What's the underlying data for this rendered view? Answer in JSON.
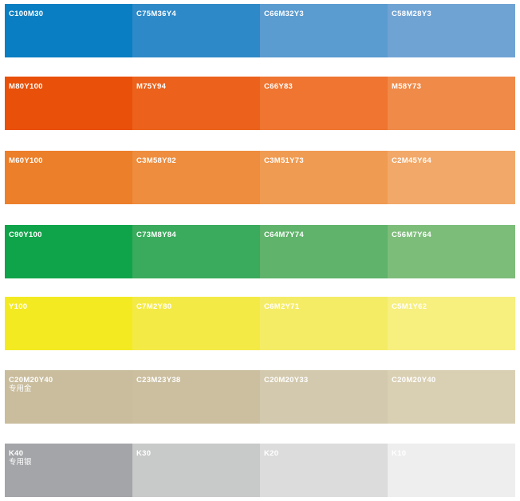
{
  "rows": [
    {
      "swatches": [
        {
          "label": "C100M30",
          "color": "#0a7ec2"
        },
        {
          "label": "C75M36Y4",
          "color": "#2e89c8"
        },
        {
          "label": "C66M32Y3",
          "color": "#5a9bd0"
        },
        {
          "label": "C58M28Y3",
          "color": "#6fa3d4"
        }
      ]
    },
    {
      "swatches": [
        {
          "label": "M80Y100",
          "color": "#e95009"
        },
        {
          "label": "M75Y94",
          "color": "#ec621c"
        },
        {
          "label": "C66Y83",
          "color": "#ef7530"
        },
        {
          "label": "M58Y73",
          "color": "#f08a48"
        }
      ]
    },
    {
      "swatches": [
        {
          "label": "M60Y100",
          "color": "#ec7f2a"
        },
        {
          "label": "C3M58Y82",
          "color": "#ee8d3e"
        },
        {
          "label": "C3M51Y73",
          "color": "#f09b52"
        },
        {
          "label": "C2M45Y64",
          "color": "#f2a868"
        }
      ]
    },
    {
      "swatches": [
        {
          "label": "C90Y100",
          "color": "#10a44a"
        },
        {
          "label": "C73M8Y84",
          "color": "#3aaa5c"
        },
        {
          "label": "C64M7Y74",
          "color": "#5fb36a"
        },
        {
          "label": "C56M7Y64",
          "color": "#7dbd7a"
        }
      ]
    },
    {
      "swatches": [
        {
          "label": "Y100",
          "color": "#f4ea22"
        },
        {
          "label": "C7M2Y80",
          "color": "#f4ea45"
        },
        {
          "label": "C6M2Y71",
          "color": "#f5ec66"
        },
        {
          "label": "C5M1Y62",
          "color": "#f7ef7e"
        }
      ]
    },
    {
      "swatches": [
        {
          "label": "C20M20Y40",
          "sublabel": "专用金",
          "color": "#c9bd9e"
        },
        {
          "label": "C23M23Y38",
          "color": "#cbbfa0"
        },
        {
          "label": "C20M20Y33",
          "color": "#d3c9ae"
        },
        {
          "label": "C20M20Y40",
          "color": "#d9cfb3"
        }
      ]
    },
    {
      "swatches": [
        {
          "label": "K40",
          "sublabel": "专用银",
          "color": "#a4a5a8"
        },
        {
          "label": "K30",
          "color": "#c8c9c9"
        },
        {
          "label": "K20",
          "color": "#dcdcdc"
        },
        {
          "label": "K10",
          "color": "#eeeeee"
        }
      ]
    }
  ]
}
